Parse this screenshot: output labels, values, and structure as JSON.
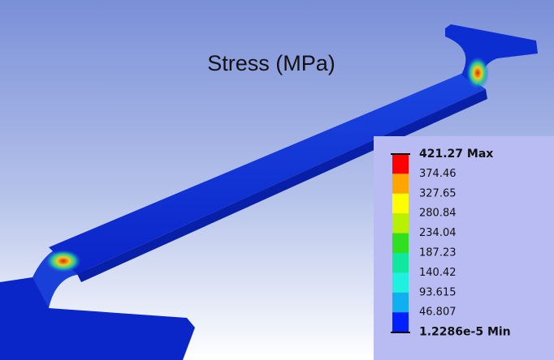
{
  "title": "Stress (MPa)",
  "legend": {
    "labels": [
      "421.27 Max",
      "374.46",
      "327.65",
      "280.84",
      "234.04",
      "187.23",
      "140.42",
      "93.615",
      "46.807",
      "1.2286e-5 Min"
    ]
  }
}
